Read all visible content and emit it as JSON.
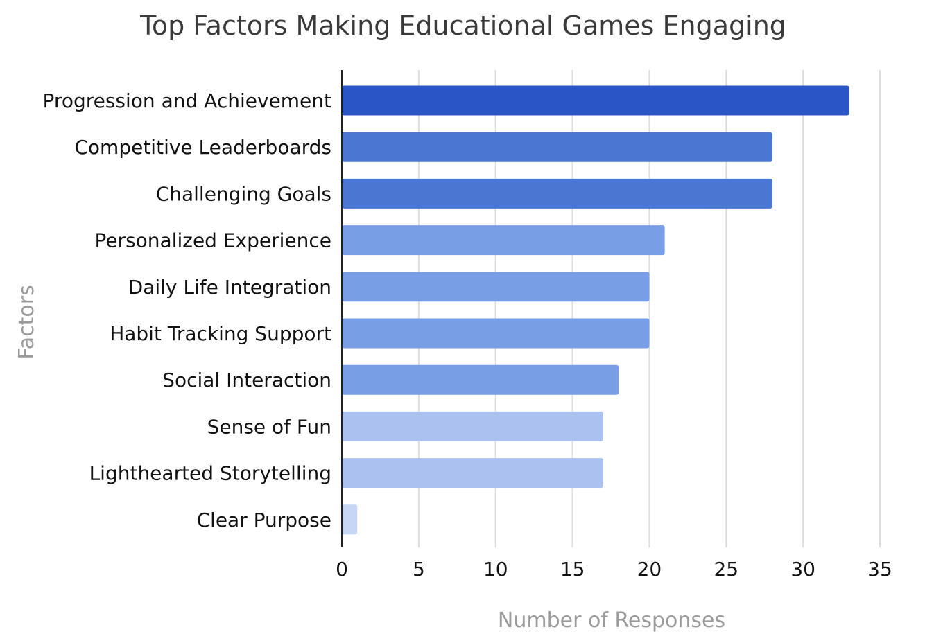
{
  "chart_data": {
    "type": "bar",
    "orientation": "horizontal",
    "title": "Top Factors Making Educational Games Engaging",
    "xlabel": "Number of Responses",
    "ylabel": "Factors",
    "categories": [
      "Progression and Achievement",
      "Competitive Leaderboards",
      "Challenging Goals",
      "Personalized Experience",
      "Daily Life Integration",
      "Habit Tracking Support",
      "Social Interaction",
      "Sense of Fun",
      "Lighthearted Storytelling",
      "Clear Purpose"
    ],
    "values": [
      33,
      28,
      28,
      21,
      20,
      20,
      18,
      17,
      17,
      1
    ],
    "colors": [
      "#2955c7",
      "#4b77d2",
      "#4b77d2",
      "#789ee5",
      "#789ee5",
      "#789ee5",
      "#789ee5",
      "#abc1f0",
      "#abc1f0",
      "#c7d6f5"
    ],
    "xlim": [
      0,
      35
    ],
    "xticks": [
      0,
      5,
      10,
      15,
      20,
      25,
      30,
      35
    ],
    "grid": true,
    "legend": "none"
  }
}
